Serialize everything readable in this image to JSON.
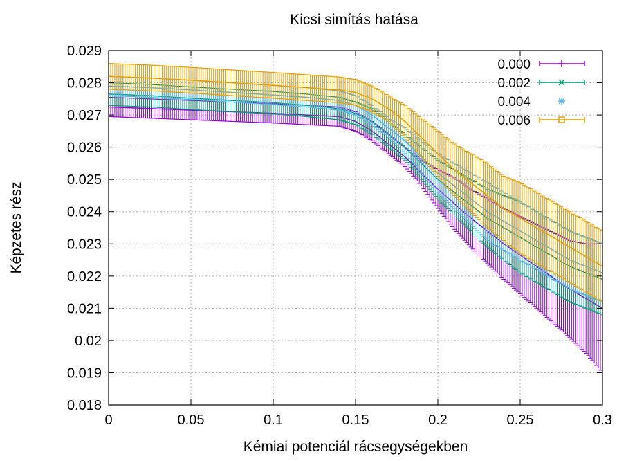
{
  "chart_data": {
    "type": "line",
    "title": "Kicsi simítás hatása",
    "xlabel": "Kémiai potenciál rácsegységekben",
    "ylabel": "Képzetes rész",
    "xlim": [
      0,
      0.3
    ],
    "ylim": [
      0.018,
      0.029
    ],
    "xticks": [
      0,
      0.05,
      0.1,
      0.15,
      0.2,
      0.25,
      0.3
    ],
    "xtick_labels": [
      "0",
      "0.05",
      "0.1",
      "0.15",
      "0.2",
      "0.25",
      "0.3"
    ],
    "yticks": [
      0.018,
      0.019,
      0.02,
      0.021,
      0.022,
      0.023,
      0.024,
      0.025,
      0.026,
      0.027,
      0.028,
      0.029
    ],
    "ytick_labels": [
      "0.018",
      "0.019",
      "0.02",
      "0.021",
      "0.022",
      "0.023",
      "0.024",
      "0.025",
      "0.026",
      "0.027",
      "0.028",
      "0.029"
    ],
    "grid": true,
    "legend_position": "top-right",
    "error_bars": true,
    "x_samples": [
      0,
      0.025,
      0.05,
      0.075,
      0.1,
      0.12,
      0.14,
      0.15,
      0.16,
      0.17,
      0.18,
      0.19,
      0.2,
      0.21,
      0.22,
      0.23,
      0.24,
      0.25,
      0.26,
      0.27,
      0.28,
      0.29,
      0.3
    ],
    "series": [
      {
        "name": "0.000",
        "color": "#9400d3",
        "marker": "plus",
        "values": [
          0.02725,
          0.0272,
          0.02715,
          0.0271,
          0.02705,
          0.027,
          0.02695,
          0.0268,
          0.0265,
          0.0261,
          0.0257,
          0.0252,
          0.0247,
          0.02425,
          0.0238,
          0.0234,
          0.023,
          0.02265,
          0.0223,
          0.02195,
          0.0216,
          0.0213,
          0.021
        ],
        "errors": [
          0.0003,
          0.0003,
          0.0003,
          0.0003,
          0.0003,
          0.0003,
          0.0003,
          0.0003,
          0.0003,
          0.0003,
          0.0003,
          0.0004,
          0.0006,
          0.0008,
          0.0009,
          0.001,
          0.0011,
          0.0012,
          0.0013,
          0.0014,
          0.0015,
          0.0017,
          0.002
        ]
      },
      {
        "name": "0.002",
        "color": "#009e73",
        "marker": "cross",
        "values": [
          0.02765,
          0.0276,
          0.02752,
          0.02745,
          0.02738,
          0.0273,
          0.0272,
          0.02705,
          0.0268,
          0.0264,
          0.026,
          0.0255,
          0.025,
          0.0246,
          0.0242,
          0.0238,
          0.0235,
          0.0232,
          0.0229,
          0.0226,
          0.0223,
          0.0221,
          0.0219
        ],
        "errors": [
          0.00035,
          0.00035,
          0.00035,
          0.00035,
          0.00035,
          0.00035,
          0.00035,
          0.00035,
          0.0004,
          0.0004,
          0.0004,
          0.0005,
          0.0006,
          0.0007,
          0.0008,
          0.0009,
          0.001,
          0.0011,
          0.0011,
          0.0011,
          0.0011,
          0.0011,
          0.0011
        ]
      },
      {
        "name": "0.004",
        "color": "#56b4e9",
        "marker": "star",
        "values": [
          0.0279,
          0.02785,
          0.02778,
          0.0277,
          0.02762,
          0.02755,
          0.02745,
          0.0273,
          0.027,
          0.0266,
          0.0262,
          0.0257,
          0.0252,
          0.0248,
          0.0244,
          0.024,
          0.0237,
          0.0234,
          0.0231,
          0.0228,
          0.0225,
          0.0223,
          0.0221
        ],
        "errors": [
          0.0003,
          0.0003,
          0.0003,
          0.0003,
          0.0003,
          0.0003,
          0.0003,
          0.0003,
          0.0003,
          0.0003,
          0.0004,
          0.0005,
          0.0006,
          0.0007,
          0.0008,
          0.0009,
          0.0009,
          0.0009,
          0.0009,
          0.0009,
          0.0009,
          0.0009,
          0.0009
        ]
      },
      {
        "name": "0.006",
        "color": "#e69f00",
        "marker": "square",
        "values": [
          0.0282,
          0.02815,
          0.02808,
          0.028,
          0.02792,
          0.02785,
          0.02778,
          0.0277,
          0.0275,
          0.0272,
          0.0268,
          0.0263,
          0.0258,
          0.0253,
          0.0249,
          0.0245,
          0.0241,
          0.0238,
          0.0235,
          0.0232,
          0.0229,
          0.0226,
          0.0223
        ],
        "errors": [
          0.0004,
          0.0004,
          0.0004,
          0.0004,
          0.0004,
          0.0004,
          0.0004,
          0.0004,
          0.0004,
          0.0004,
          0.0005,
          0.0006,
          0.0007,
          0.0008,
          0.0009,
          0.001,
          0.001,
          0.0011,
          0.0011,
          0.0011,
          0.0011,
          0.0011,
          0.0011
        ]
      }
    ]
  }
}
